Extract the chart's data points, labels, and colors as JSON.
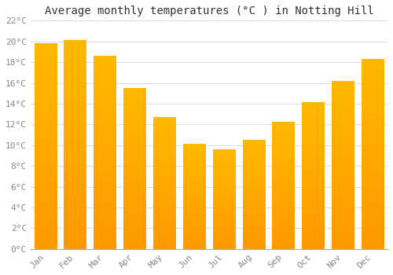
{
  "title": "Average monthly temperatures (°C ) in Notting Hill",
  "months": [
    "Jan",
    "Feb",
    "Mar",
    "Apr",
    "May",
    "Jun",
    "Jul",
    "Aug",
    "Sep",
    "Oct",
    "Nov",
    "Dec"
  ],
  "values": [
    19.8,
    20.1,
    18.6,
    15.5,
    12.7,
    10.1,
    9.6,
    10.5,
    12.2,
    14.1,
    16.2,
    18.3
  ],
  "bar_color_top": "#FFB900",
  "bar_color_bottom": "#FF9900",
  "background_color": "#FFFFFF",
  "grid_color": "#DDDDDD",
  "ylim": [
    0,
    22
  ],
  "ytick_step": 2,
  "title_fontsize": 10,
  "tick_fontsize": 8,
  "tick_color": "#888888",
  "title_color": "#333333",
  "bar_width": 0.75
}
